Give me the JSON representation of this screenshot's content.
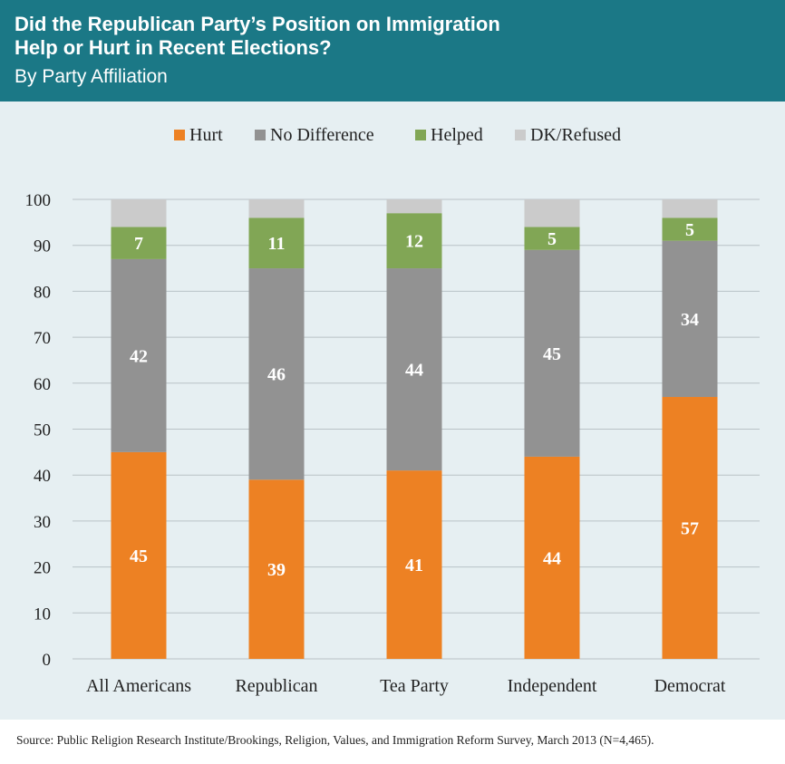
{
  "header": {
    "title_line1": "Did the Republican Party’s Position on Immigration",
    "title_line2": "Help or Hurt in Recent Elections?",
    "subtitle": "By Party Affiliation"
  },
  "source": "Source: Public Religion Research Institute/Brookings, Religion, Values, and Immigration Reform Survey, March 2013 (N=4,465).",
  "colors": {
    "header_bg": "#1b7886",
    "plot_bg": "#e6eff2",
    "hurt": "#ed8123",
    "no_difference": "#929292",
    "helped": "#81a655",
    "dk_refused": "#cbcbcb"
  },
  "chart_data": {
    "type": "bar",
    "stacked": true,
    "categories": [
      "All Americans",
      "Republican",
      "Tea Party",
      "Independent",
      "Democrat"
    ],
    "series": [
      {
        "name": "Hurt",
        "values": [
          45,
          39,
          41,
          44,
          57
        ],
        "color": "#ed8123"
      },
      {
        "name": "No Difference",
        "values": [
          42,
          46,
          44,
          45,
          34
        ],
        "color": "#929292"
      },
      {
        "name": "Helped",
        "values": [
          7,
          11,
          12,
          5,
          5
        ],
        "color": "#81a655"
      },
      {
        "name": "DK/Refused",
        "values": [
          6,
          4,
          3,
          6,
          4
        ],
        "color": "#cbcbcb"
      }
    ],
    "data_labels": {
      "Hurt": [
        "45",
        "39",
        "41",
        "44",
        "57"
      ],
      "No Difference": [
        "42",
        "46",
        "44",
        "45",
        "34"
      ],
      "Helped": [
        "7",
        "11",
        "12",
        "5",
        "5"
      ]
    },
    "yticks": [
      0,
      10,
      20,
      30,
      40,
      50,
      60,
      70,
      80,
      90,
      100
    ],
    "ylim": [
      0,
      100
    ],
    "grid": true,
    "legend_position": "top-center"
  }
}
